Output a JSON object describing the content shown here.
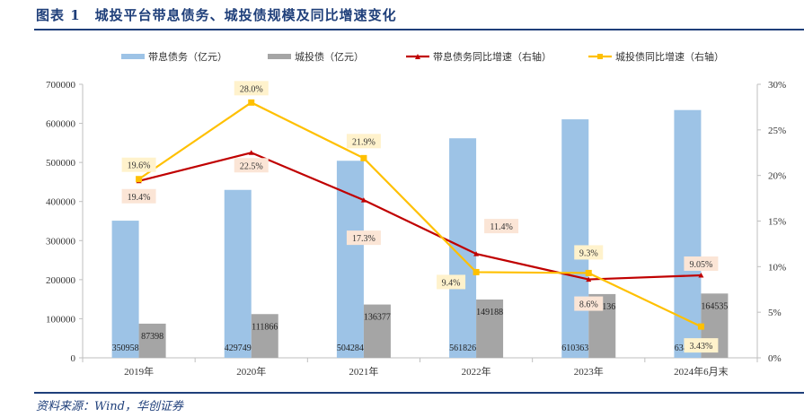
{
  "figure": {
    "title": "图表 1　城投平台带息债务、城投债规模及同比增速变化",
    "source": "资料来源：Wind，华创证券"
  },
  "colors": {
    "bar_interest_debt": "#9dc3e6",
    "bar_chengtou_bond": "#a5a5a5",
    "line_interest_growth": "#c00000",
    "line_bond_growth": "#ffc000",
    "label_bg_interest": "#fbe5d6",
    "label_bg_bond": "#fff2cc",
    "title_blue": "#1f3f7a"
  },
  "chart_data": {
    "type": "bar",
    "title": "城投平台带息债务、城投债规模及同比增速变化",
    "xlabel": "",
    "ylabel": "",
    "categories": [
      "2019年",
      "2020年",
      "2021年",
      "2022年",
      "2023年",
      "2024年6月末"
    ],
    "ylim": [
      0,
      700000
    ],
    "yticks": [
      "0",
      "100000",
      "200000",
      "300000",
      "400000",
      "500000",
      "600000",
      "700000"
    ],
    "y2lim": [
      0,
      30
    ],
    "y2ticks": [
      "0%",
      "5%",
      "10%",
      "15%",
      "20%",
      "25%",
      "30%"
    ],
    "legend_position": "top",
    "grid": false,
    "series": [
      {
        "name": "带息债务（亿元）",
        "kind": "bar",
        "axis": "left",
        "values": [
          350958,
          429749,
          504284,
          561826,
          610363,
          634111
        ],
        "labels": [
          "350958",
          "429749",
          "504284",
          "561826",
          "610363",
          "634111"
        ]
      },
      {
        "name": "城投债（亿元）",
        "kind": "bar",
        "axis": "left",
        "values": [
          87398,
          111866,
          136377,
          149188,
          163136,
          164535
        ],
        "labels": [
          "87398",
          "111866",
          "136377",
          "149188",
          "163136",
          "164535"
        ]
      },
      {
        "name": "带息债务同比增速（右轴）",
        "kind": "line",
        "axis": "right",
        "values": [
          19.4,
          22.5,
          17.3,
          11.4,
          8.6,
          9.05
        ],
        "labels": [
          "19.4%",
          "22.5%",
          "17.3%",
          "11.4%",
          "8.6%",
          "9.05%"
        ]
      },
      {
        "name": "城投债同比增速（右轴）",
        "kind": "line",
        "axis": "right",
        "values": [
          19.6,
          28.0,
          21.9,
          9.4,
          9.3,
          3.43
        ],
        "labels": [
          "19.6%",
          "28.0%",
          "21.9%",
          "9.4%",
          "9.3%",
          "3.43%"
        ]
      }
    ]
  }
}
